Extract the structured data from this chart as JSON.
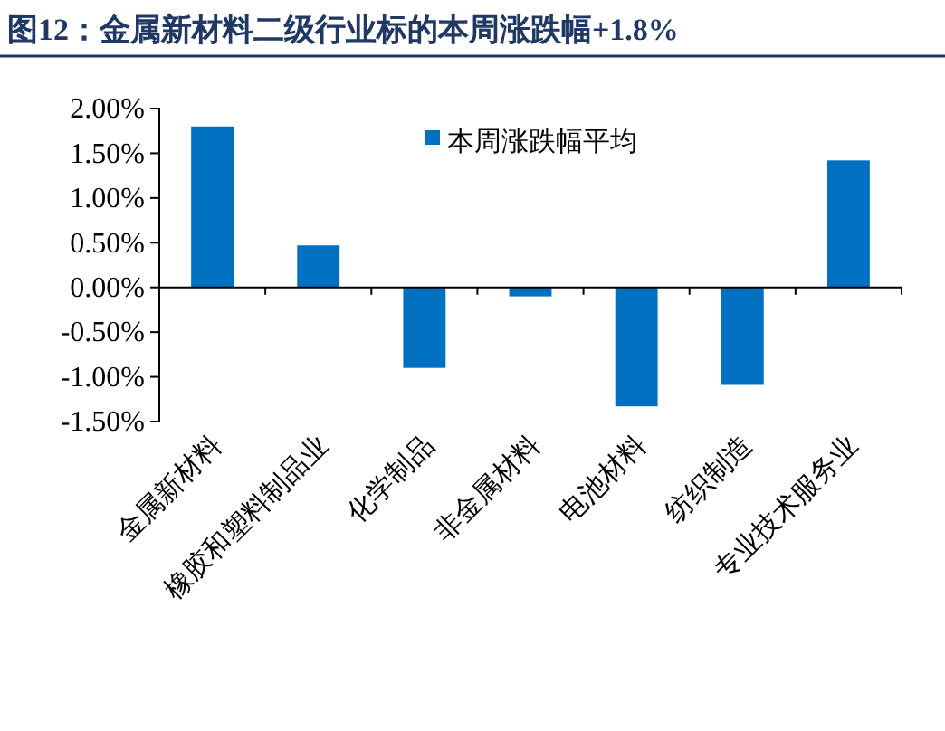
{
  "chart_data": {
    "type": "bar",
    "title": "图12：金属新材料二级行业标的本周涨跌幅+1.8%",
    "categories": [
      "金属新材料",
      "橡胶和塑料制品业",
      "化学制品",
      "非金属材料",
      "电池材料",
      "纺织制造",
      "专业技术服务业"
    ],
    "series": [
      {
        "name": "本周涨跌幅平均",
        "color": "#0070c0",
        "values": [
          1.8,
          0.47,
          -0.9,
          -0.1,
          -1.33,
          -1.09,
          1.42
        ]
      }
    ],
    "ylim": [
      -1.5,
      2
    ],
    "yticks": [
      {
        "value": -1.5,
        "label": "-1.50%"
      },
      {
        "value": -1,
        "label": "-1.00%"
      },
      {
        "value": -0.5,
        "label": "-0.50%"
      },
      {
        "value": 0,
        "label": "0.00%"
      },
      {
        "value": 0.5,
        "label": "0.50%"
      },
      {
        "value": 1,
        "label": "1.00%"
      },
      {
        "value": 1.5,
        "label": "1.50%"
      },
      {
        "value": 2,
        "label": "2.00%"
      }
    ],
    "legend": "top"
  }
}
